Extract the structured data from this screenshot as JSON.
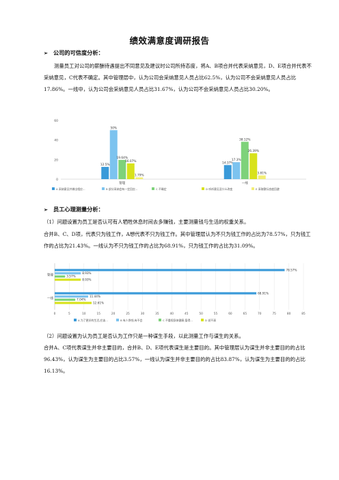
{
  "title": "绩效满意度调研报告",
  "sections": [
    {
      "heading": "公司的可信度分析：",
      "paragraph": "测量员工对公司的薪酬待遇提出不同意见及建议时公司所持态度，将A、B项合并代表采纳意见，D、E项合并代表不采纳意见，C代表不确定。其中管理层中，认为公司会采纳意见人员占比62.5%，认为公司不会采纳意见人员占比17.86%。一线中，认为公司会采纳意见人员占比31.67%，认为公司不会采纳意见人员占比30.20%。"
    },
    {
      "heading": "员工心理测量分析：",
      "sub1": "（1）问题设置为员工是否认可有人牺牲休息时间去多赚钱，主要测量钱与生活的权重关系。",
      "para1": "合并B、C、D项，代表只为钱工作，A想代表不只为钱工作。其中管理层认为不只为钱工作的占比为78.57%，只为钱工作的占比为21.43%。一线认为不只为钱工作的占比为68.91%，只为钱工作的占比为31.09%。",
      "sub2": "（2）问题设置为认为员工是否认为工作只是一种谋生手段，以此测量工作与谋生的关系。",
      "para2": "合并A、C项代表谋生并非主要目的，合并B、D、E项代表谋生是主要目的。其中管理层认为谋生并非主要目的的占比96.43%，认为谋生为主要目的占比3.57%，一线认为谋生并非主要目的的占比83.87%，认为谋生为主要目的的占比16.13%。"
    }
  ],
  "chart_data": [
    {
      "type": "bar",
      "categories": [
        "管理",
        "一线"
      ],
      "series": [
        {
          "name": "A 采纳意见并做出相应...",
          "values": [
            12.5,
            14.37
          ],
          "labels": [
            "12.5%",
            "14.37%"
          ],
          "color": "#3a9ad9"
        },
        {
          "name": "B 部分采纳会有一定回应...",
          "values": [
            50,
            17.3
          ],
          "labels": [
            "50%",
            "17.3%"
          ],
          "color": "#7cc3ef"
        },
        {
          "name": "C 不确定",
          "values": [
            19.64,
            38.12
          ],
          "labels": [
            "19.64%",
            "38.12%"
          ],
          "color": "#7ed27a"
        },
        {
          "name": "D 听听意见没什么改变",
          "values": [
            16.07,
            26.39
          ],
          "labels": [
            "16.07%",
            "26.39%"
          ],
          "color": "#d8e21c"
        },
        {
          "name": "E 采取敷衍态度回避",
          "values": [
            1.79,
            3.81
          ],
          "labels": [
            "1.79%",
            "3.81%"
          ],
          "color": "#f3ee74"
        }
      ],
      "yticks": [
        "0",
        "20",
        "40",
        "60"
      ],
      "ylim": [
        0,
        60
      ],
      "grid": false,
      "legend": "bottom"
    },
    {
      "type": "bar",
      "orientation": "horizontal",
      "categories": [
        "管理",
        "一线"
      ],
      "series": [
        {
          "name": "A 为了更好的生活,应该...",
          "values": [
            78.57,
            68.91
          ],
          "labels": [
            "78.57%",
            "68.91%"
          ],
          "color": "#3a9ad9"
        },
        {
          "name": "B 有人挣钱,有不会",
          "values": [
            8.93,
            11.44
          ],
          "labels": [
            "8.93%",
            "11.44%"
          ],
          "color": "#7cc3ef"
        },
        {
          "name": "C 不重视身体健康,值得...",
          "values": [
            3.57,
            7.04
          ],
          "labels": [
            "3.57%",
            "7.04%"
          ],
          "color": "#7ed27a"
        },
        {
          "name": "D 说不清",
          "values": [
            8.93,
            12.61
          ],
          "labels": [
            "8.93%",
            "12.61%"
          ],
          "color": "#d8e21c"
        }
      ],
      "xticks": [
        "0",
        "5",
        "10",
        "15",
        "20",
        "25",
        "30",
        "35",
        "40",
        "45",
        "50",
        "55",
        "60",
        "65",
        "70",
        "75",
        "80",
        "85"
      ],
      "xlim": [
        0,
        85
      ],
      "grid": true,
      "legend": "bottom"
    }
  ]
}
